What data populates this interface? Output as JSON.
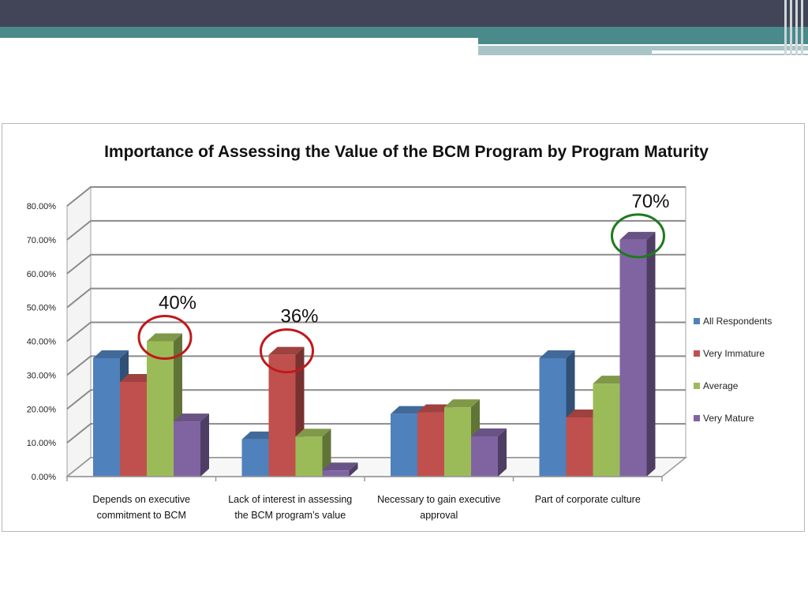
{
  "slide": {
    "colors": {
      "dark_bar": "#414557",
      "teal_bar": "#4a8a8b",
      "light_bar": "#a9c4c6"
    }
  },
  "chart_data": {
    "type": "bar",
    "style": "3d-clustered-column",
    "title": "Importance of Assessing  the Value of the BCM Program by Program Maturity",
    "categories": [
      [
        "Depends on executive",
        "commitment to BCM"
      ],
      [
        "Lack of interest in assessing",
        "the BCM program’s value"
      ],
      [
        "Necessary to gain executive",
        "approval"
      ],
      [
        "Part of corporate culture"
      ]
    ],
    "series": [
      {
        "name": "All Respondents",
        "color": "#4f81bd",
        "values": [
          35,
          11,
          18.5,
          35
        ]
      },
      {
        "name": "Very Immature",
        "color": "#c0504d",
        "values": [
          28,
          36,
          19,
          17.5
        ]
      },
      {
        "name": "Average",
        "color": "#9bbb59",
        "values": [
          40,
          11.8,
          20.5,
          27.5
        ]
      },
      {
        "name": "Very Mature",
        "color": "#8064a2",
        "values": [
          16.3,
          1.8,
          11.9,
          70
        ]
      }
    ],
    "ylim": [
      0,
      80
    ],
    "yticks": [
      "0.00%",
      "10.00%",
      "20.00%",
      "30.00%",
      "40.00%",
      "50.00%",
      "60.00%",
      "70.00%",
      "80.00%"
    ],
    "grid": true,
    "legend": "right",
    "annotations": [
      {
        "text": "40%",
        "category": 0,
        "series": 2,
        "circle_color": "#c0191d"
      },
      {
        "text": "36%",
        "category": 1,
        "series": 1,
        "circle_color": "#c0191d"
      },
      {
        "text": "70%",
        "category": 3,
        "series": 3,
        "circle_color": "#1f7a1f"
      }
    ]
  }
}
